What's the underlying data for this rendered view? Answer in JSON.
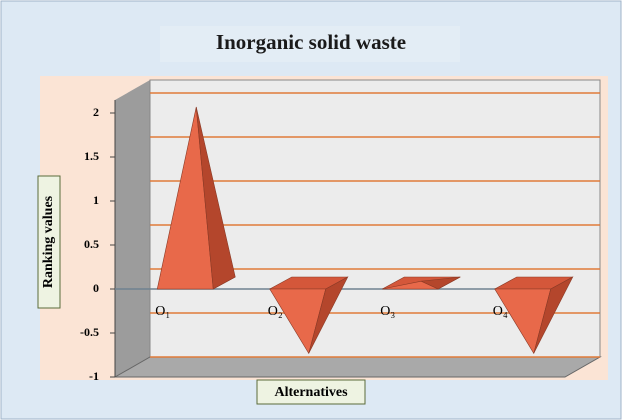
{
  "chart_data": {
    "type": "pyramid",
    "title": "Inorganic solid waste",
    "y_label": "Ranking values",
    "x_label": "Alternatives",
    "categories": [
      "O₁",
      "O₂",
      "O₃",
      "O₄"
    ],
    "values": [
      2,
      -0.8,
      0.02,
      -0.8
    ],
    "color": "#e8694a",
    "ylim": [
      -1,
      2
    ],
    "yticks": [
      2,
      1.5,
      1,
      0.5,
      0,
      -0.5,
      -1
    ],
    "grid": true
  }
}
